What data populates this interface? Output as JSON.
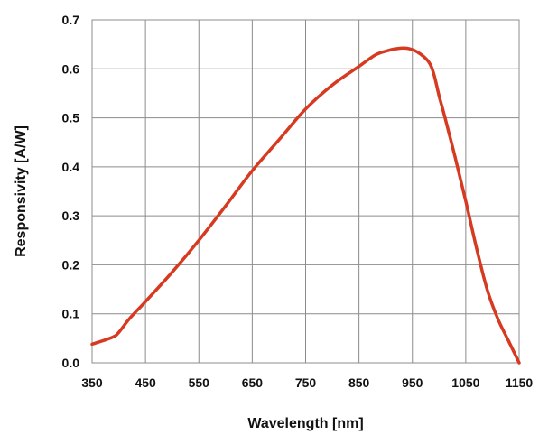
{
  "chart_data": {
    "type": "line",
    "title": "",
    "xlabel": "Wavelength [nm]",
    "ylabel": "Responsivity [A/W]",
    "xlim": [
      350,
      1150
    ],
    "ylim": [
      0,
      0.7
    ],
    "x_ticks": [
      350,
      450,
      550,
      650,
      750,
      850,
      950,
      1050,
      1150
    ],
    "y_ticks": [
      0.0,
      0.1,
      0.2,
      0.3,
      0.4,
      0.5,
      0.6,
      0.7
    ],
    "x_tick_labels": [
      "350",
      "450",
      "550",
      "650",
      "750",
      "850",
      "950",
      "1050",
      "1150"
    ],
    "y_tick_labels": [
      "0.0",
      "0.1",
      "0.2",
      "0.3",
      "0.4",
      "0.5",
      "0.6",
      "0.7"
    ],
    "grid": true,
    "legend": "none",
    "series": [
      {
        "color": "#d63a21",
        "x": [
          350,
          370,
          390,
          400,
          420,
          450,
          500,
          550,
          600,
          650,
          700,
          750,
          800,
          850,
          880,
          900,
          920,
          940,
          960,
          980,
          990,
          1000,
          1010,
          1030,
          1050,
          1070,
          1090,
          1110,
          1130,
          1150
        ],
        "y": [
          0.038,
          0.045,
          0.053,
          0.062,
          0.09,
          0.125,
          0.185,
          0.25,
          0.32,
          0.392,
          0.455,
          0.518,
          0.567,
          0.605,
          0.628,
          0.636,
          0.641,
          0.642,
          0.634,
          0.615,
          0.59,
          0.545,
          0.505,
          0.42,
          0.33,
          0.235,
          0.15,
          0.09,
          0.045,
          0.0
        ]
      }
    ]
  }
}
